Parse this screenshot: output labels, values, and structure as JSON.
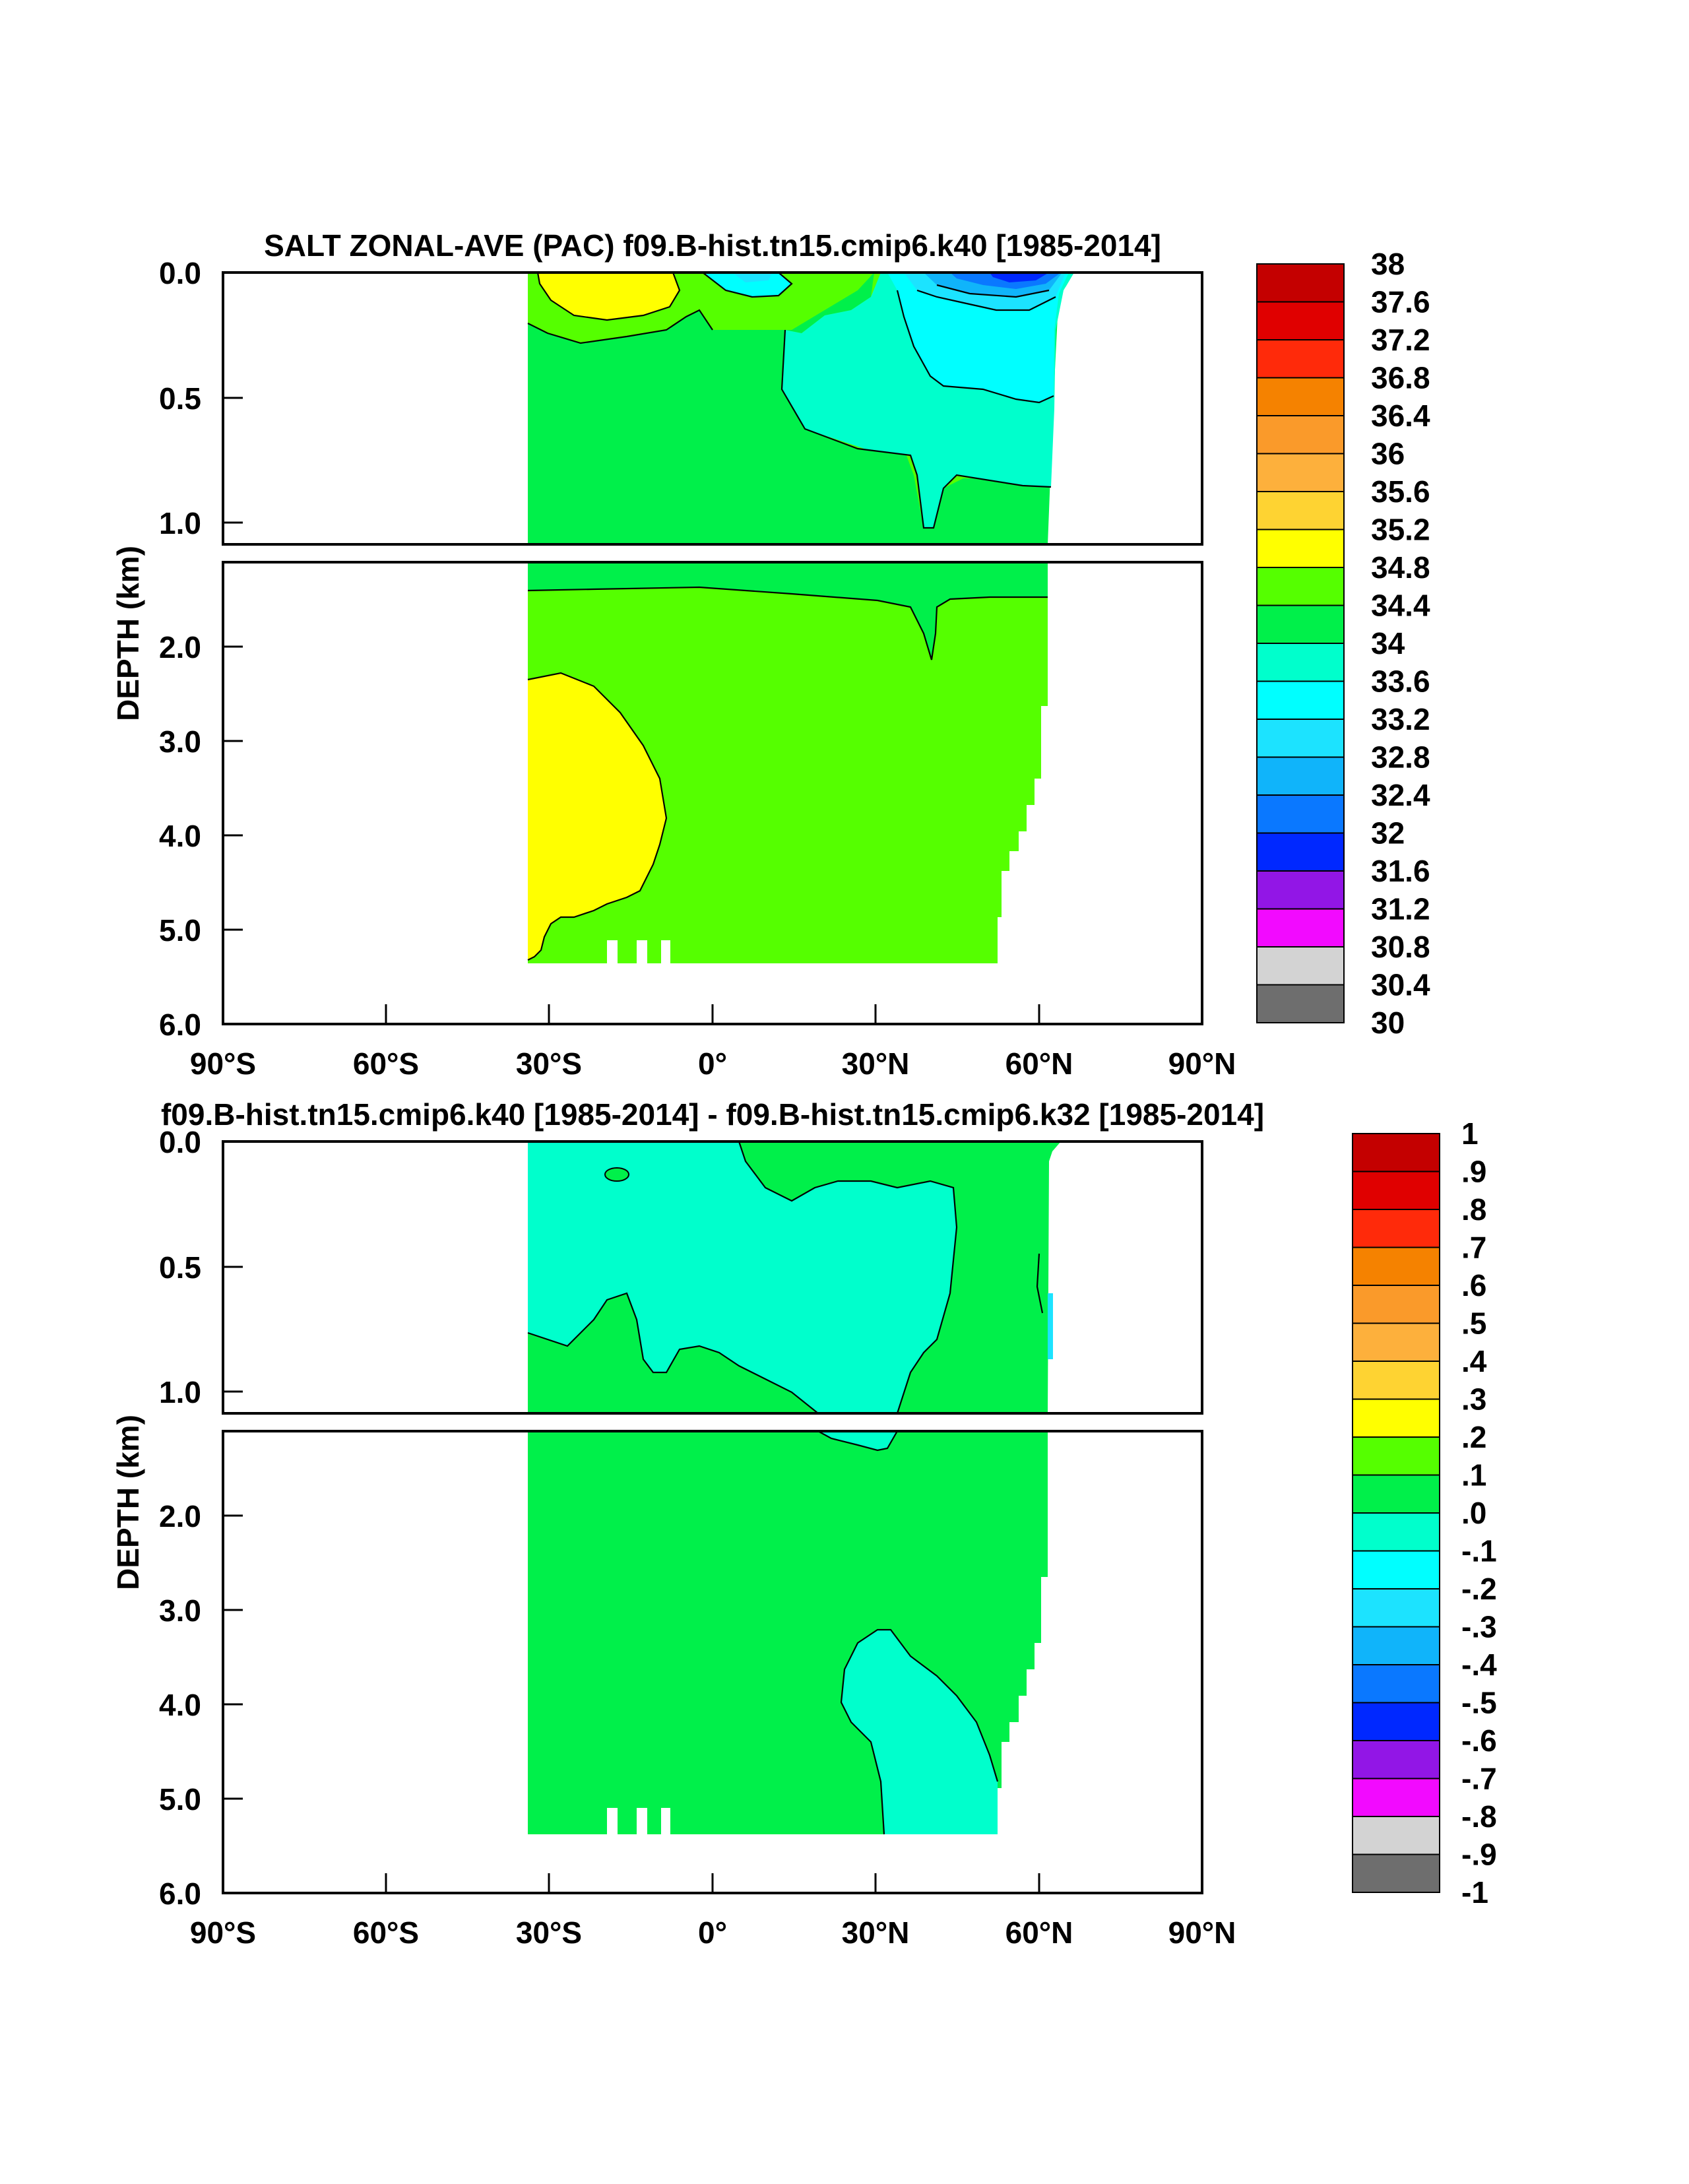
{
  "chart_data": [
    {
      "type": "contour",
      "title": "SALT ZONAL-AVE (PAC) f09.B-hist.tn15.cmip6.k40 [1985-2014]",
      "ylabel": "DEPTH (km)",
      "xlabel": "",
      "xlim": [
        -90,
        90
      ],
      "ylim": [
        6.0,
        0.0
      ],
      "x_ticks": [
        {
          "value": -90,
          "label": "90°S"
        },
        {
          "value": -60,
          "label": "60°S"
        },
        {
          "value": -30,
          "label": "30°S"
        },
        {
          "value": 0,
          "label": "0°"
        },
        {
          "value": 30,
          "label": "30°N"
        },
        {
          "value": 60,
          "label": "60°N"
        },
        {
          "value": 90,
          "label": "90°N"
        }
      ],
      "y_ticks_upper": [
        {
          "value": 0.0,
          "label": "0.0"
        },
        {
          "value": 0.5,
          "label": "0.5"
        },
        {
          "value": 1.0,
          "label": "1.0"
        }
      ],
      "y_ticks_lower": [
        {
          "value": 2.0,
          "label": "2.0"
        },
        {
          "value": 3.0,
          "label": "3.0"
        },
        {
          "value": 4.0,
          "label": "4.0"
        },
        {
          "value": 5.0,
          "label": "5.0"
        },
        {
          "value": 6.0,
          "label": "6.0"
        }
      ],
      "colorbar": {
        "labels": [
          "38",
          "37.6",
          "37.2",
          "36.8",
          "36.4",
          "36",
          "35.6",
          "35.2",
          "34.8",
          "34.4",
          "34",
          "33.6",
          "33.2",
          "32.8",
          "32.4",
          "32",
          "31.6",
          "31.2",
          "30.8",
          "30.4",
          "30"
        ],
        "colors": [
          "#c40000",
          "#e00000",
          "#ff2a0a",
          "#f58200",
          "#fa9a2a",
          "#fdb03c",
          "#fed332",
          "#ffff00",
          "#55ff00",
          "#00f04a",
          "#00ffcc",
          "#00ffff",
          "#1ce3ff",
          "#10b4fa",
          "#0a78ff",
          "#0028ff",
          "#9216e6",
          "#f20aff",
          "#d3d3d3",
          "#6e6e6e"
        ]
      },
      "fill_colors": {
        "background": "#55ff00",
        "saline_core": "#ffff00",
        "fresher": "#00ffcc",
        "fresher2": "#00ffff",
        "fresh_patch": "#0a78ff",
        "deep_fresh": "#0028ff"
      },
      "fields": {
        "upper_background": 34.5,
        "subtropical_max_near_25S": 35.0,
        "north_pacific_intermediate": 33.8,
        "deep_south_core": 34.9,
        "deep_background": 34.6,
        "surface_min_near_60N": 32.0
      }
    },
    {
      "type": "contour",
      "title": "f09.B-hist.tn15.cmip6.k40 [1985-2014] - f09.B-hist.tn15.cmip6.k32 [1985-2014]",
      "ylabel": "DEPTH (km)",
      "xlabel": "",
      "xlim": [
        -90,
        90
      ],
      "ylim": [
        6.0,
        0.0
      ],
      "x_ticks": [
        {
          "value": -90,
          "label": "90°S"
        },
        {
          "value": -60,
          "label": "60°S"
        },
        {
          "value": -30,
          "label": "30°S"
        },
        {
          "value": 0,
          "label": "0°"
        },
        {
          "value": 30,
          "label": "30°N"
        },
        {
          "value": 60,
          "label": "60°N"
        },
        {
          "value": 90,
          "label": "90°N"
        }
      ],
      "y_ticks_upper": [
        {
          "value": 0.0,
          "label": "0.0"
        },
        {
          "value": 0.5,
          "label": "0.5"
        },
        {
          "value": 1.0,
          "label": "1.0"
        }
      ],
      "y_ticks_lower": [
        {
          "value": 2.0,
          "label": "2.0"
        },
        {
          "value": 3.0,
          "label": "3.0"
        },
        {
          "value": 4.0,
          "label": "4.0"
        },
        {
          "value": 5.0,
          "label": "5.0"
        },
        {
          "value": 6.0,
          "label": "6.0"
        }
      ],
      "colorbar": {
        "labels": [
          "1",
          ".9",
          ".8",
          ".7",
          ".6",
          ".5",
          ".4",
          ".3",
          ".2",
          ".1",
          ".0",
          "-.1",
          "-.2",
          "-.3",
          "-.4",
          "-.5",
          "-.6",
          "-.7",
          "-.8",
          "-.9",
          "-1"
        ],
        "colors": [
          "#c40000",
          "#e00000",
          "#ff2a0a",
          "#f58200",
          "#fa9a2a",
          "#fdb03c",
          "#fed332",
          "#ffff00",
          "#55ff00",
          "#00f04a",
          "#00ffcc",
          "#00ffff",
          "#1ce3ff",
          "#10b4fa",
          "#0a78ff",
          "#0028ff",
          "#9216e6",
          "#f20aff",
          "#d3d3d3",
          "#6e6e6e"
        ]
      },
      "fill_colors": {
        "background": "#00f04a",
        "negative": "#00ffcc",
        "slightly_negative": "#1ce3ff"
      },
      "fields": {
        "upper_negative_band": -0.05,
        "background_difference": 0.05,
        "deep_negative_lobe_near_40N": -0.05
      }
    }
  ]
}
